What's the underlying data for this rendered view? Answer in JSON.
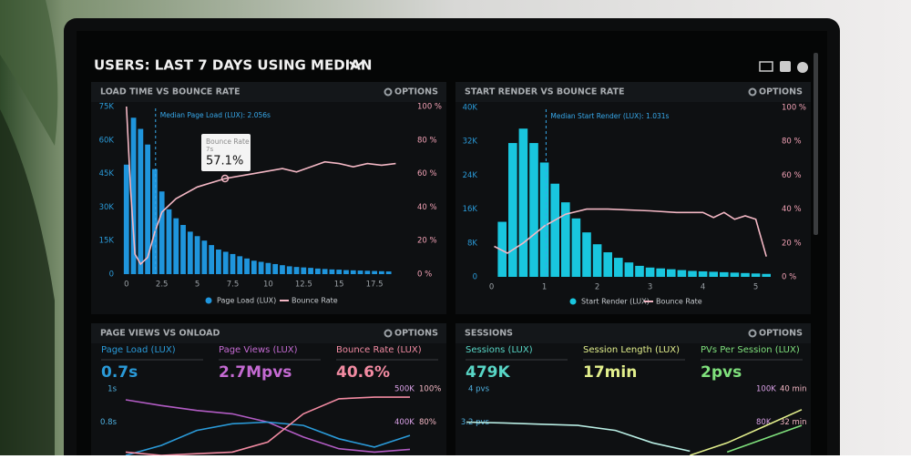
{
  "header": {
    "title": "USERS: LAST 7 DAYS USING MEDIAN"
  },
  "chart_data": [
    {
      "type": "histogram",
      "title": "LOAD TIME VS BOUNCE RATE",
      "options": "OPTIONS",
      "bins": [
        -0.25,
        0.25,
        0.75,
        1.25,
        1.75,
        2.25,
        2.75,
        3.25,
        3.75,
        4.25,
        4.75,
        5.25,
        5.75,
        6.25,
        6.75,
        7.25,
        7.75,
        8.25,
        8.75,
        9.25,
        9.75,
        10.25,
        10.75,
        11.25,
        11.75,
        12.25,
        12.75,
        13.25,
        13.75,
        14.25,
        14.75,
        15.25,
        15.75,
        16.25,
        16.75,
        17.25,
        17.75,
        18.25,
        18.75
      ],
      "series": [
        {
          "name": "Page Load (LUX)",
          "color": "#1f95dc",
          "values": [
            49000,
            70000,
            65000,
            58000,
            47000,
            37000,
            29000,
            25000,
            22000,
            19000,
            17000,
            15000,
            13000,
            11000,
            10000,
            9000,
            8000,
            7000,
            6000,
            5500,
            5000,
            4500,
            4000,
            3500,
            3200,
            3000,
            2800,
            2500,
            2300,
            2100,
            2000,
            1800,
            1700,
            1600,
            1500,
            1400,
            1300,
            1200
          ]
        },
        {
          "name": "Bounce Rate",
          "color": "#f3b7c4",
          "axis": "y2",
          "x": [
            0,
            0.3,
            0.6,
            1,
            1.5,
            2,
            2.5,
            3.5,
            5,
            7,
            9,
            11,
            12,
            13,
            14,
            15,
            16,
            17,
            18,
            19
          ],
          "values": [
            100,
            50,
            12,
            6,
            10,
            25,
            37,
            45,
            52,
            57.1,
            60,
            63,
            61,
            64,
            67,
            66,
            64,
            66,
            65,
            66
          ]
        }
      ],
      "xlim": [
        -0.5,
        20
      ],
      "xticks": [
        0,
        2.5,
        5,
        7.5,
        10,
        12.5,
        15,
        17.5
      ],
      "ylim": [
        0,
        75000
      ],
      "yticks": [
        {
          "value": 0,
          "label": "0"
        },
        {
          "value": 15000,
          "label": "15K"
        },
        {
          "value": 30000,
          "label": "30K"
        },
        {
          "value": 45000,
          "label": "45K"
        },
        {
          "value": 60000,
          "label": "60K"
        },
        {
          "value": 75000,
          "label": "75K"
        }
      ],
      "y2lim": [
        0,
        100
      ],
      "y2ticks": [
        {
          "value": 0,
          "label": "0 %"
        },
        {
          "value": 20,
          "label": "20 %"
        },
        {
          "value": 40,
          "label": "40 %"
        },
        {
          "value": 60,
          "label": "60 %"
        },
        {
          "value": 80,
          "label": "80 %"
        },
        {
          "value": 100,
          "label": "100 %"
        }
      ],
      "median": {
        "value": 2.056,
        "label": "Median Page Load (LUX): 2.056s"
      },
      "tooltip": {
        "title": "Bounce Rate",
        "subtitle": "7s",
        "label": "57.1%"
      }
    },
    {
      "type": "histogram",
      "title": "START RENDER VS BOUNCE RATE",
      "options": "OPTIONS",
      "bins": [
        0.1,
        0.3,
        0.5,
        0.7,
        0.9,
        1.1,
        1.3,
        1.5,
        1.7,
        1.9,
        2.1,
        2.3,
        2.5,
        2.7,
        2.9,
        3.1,
        3.3,
        3.5,
        3.7,
        3.9,
        4.1,
        4.3,
        4.5,
        4.7,
        4.9,
        5.1,
        5.3
      ],
      "series": [
        {
          "name": "Start Render (LUX)",
          "color": "#19c6de",
          "values": [
            13000,
            31600,
            35000,
            31600,
            27000,
            22000,
            17600,
            13800,
            10500,
            7700,
            5800,
            4500,
            3400,
            2600,
            2200,
            2000,
            1800,
            1600,
            1400,
            1300,
            1200,
            1100,
            1000,
            900,
            800,
            700
          ]
        },
        {
          "name": "Bounce Rate",
          "color": "#f3b7c4",
          "axis": "y2",
          "x": [
            0.05,
            0.3,
            0.6,
            1,
            1.4,
            1.8,
            2.2,
            3,
            3.5,
            4,
            4.2,
            4.4,
            4.6,
            4.8,
            5,
            5.2
          ],
          "values": [
            18,
            14,
            20,
            30,
            37,
            40,
            40,
            39,
            38,
            38,
            35,
            38,
            34,
            36,
            34,
            12
          ]
        }
      ],
      "xlim": [
        -0.2,
        5.3
      ],
      "xticks": [
        0,
        1,
        2,
        3,
        4,
        5
      ],
      "ylim": [
        0,
        40000
      ],
      "yticks": [
        {
          "value": 0,
          "label": "0"
        },
        {
          "value": 8000,
          "label": "8K"
        },
        {
          "value": 16000,
          "label": "16K"
        },
        {
          "value": 24000,
          "label": "24K"
        },
        {
          "value": 32000,
          "label": "32K"
        },
        {
          "value": 40000,
          "label": "40K"
        }
      ],
      "y2lim": [
        0,
        100
      ],
      "y2ticks": [
        {
          "value": 0,
          "label": "0 %"
        },
        {
          "value": 20,
          "label": "20 %"
        },
        {
          "value": 40,
          "label": "40 %"
        },
        {
          "value": 60,
          "label": "60 %"
        },
        {
          "value": 80,
          "label": "80 %"
        },
        {
          "value": 100,
          "label": "100 %"
        }
      ],
      "median": {
        "value": 1.031,
        "label": "Median Start Render (LUX): 1.031s"
      }
    },
    {
      "type": "line",
      "title": "PAGE VIEWS VS ONLOAD",
      "options": "OPTIONS",
      "kpis": [
        {
          "label": "Page Load (LUX)",
          "value": "0.7s",
          "color": "#2a9ad8"
        },
        {
          "label": "Page Views (LUX)",
          "value": "2.7Mpvs",
          "color": "#c46ad2"
        },
        {
          "label": "Bounce Rate (LUX)",
          "value": "40.6%",
          "color": "#f28ba2"
        }
      ],
      "x": [
        0,
        1,
        2,
        3,
        4,
        5,
        6,
        7,
        8
      ],
      "xlim": [
        0,
        8
      ],
      "ylim": [
        0.6,
        1
      ],
      "yticks": [
        {
          "value": 1,
          "label": "1s"
        },
        {
          "value": 0.8,
          "label": "0.8s"
        }
      ],
      "y2lim": [
        300000,
        500000
      ],
      "y2ticks": [
        {
          "value": 500000,
          "label": "500K"
        },
        {
          "value": 400000,
          "label": "400K"
        }
      ],
      "y3lim": [
        60,
        100
      ],
      "y3ticks": [
        {
          "value": 100,
          "label": "100%"
        },
        {
          "value": 80,
          "label": "80%"
        }
      ],
      "series": [
        {
          "color": "#b25cc4",
          "axis": "y2",
          "values": [
            467000,
            450000,
            435000,
            425000,
            400000,
            355000,
            320000,
            310000,
            318000
          ]
        },
        {
          "color": "#2a9ad8",
          "values": [
            0.6,
            0.66,
            0.75,
            0.79,
            0.8,
            0.78,
            0.7,
            0.65,
            0.72
          ]
        },
        {
          "color": "#f28ba2",
          "axis": "y3",
          "values": [
            62,
            60,
            61,
            62,
            68,
            85,
            94,
            95,
            95
          ]
        }
      ]
    },
    {
      "type": "line",
      "title": "SESSIONS",
      "options": "OPTIONS",
      "kpis": [
        {
          "label": "Sessions (LUX)",
          "value": "479K",
          "color": "#58d6c6"
        },
        {
          "label": "Session Length (LUX)",
          "value": "17min",
          "color": "#e2ef8c"
        },
        {
          "label": "PVs Per Session (LUX)",
          "value": "2pvs",
          "color": "#7fe07c"
        }
      ],
      "x": [
        0,
        1,
        2,
        3,
        4,
        5,
        6,
        7,
        8,
        9
      ],
      "xlim": [
        0,
        9
      ],
      "ylim": [
        2.4,
        4
      ],
      "yticks": [
        {
          "value": 4,
          "label": "4 pvs"
        },
        {
          "value": 3.2,
          "label": "3.2 pvs"
        }
      ],
      "y2lim": [
        60000,
        100000
      ],
      "y2ticks": [
        {
          "value": 100000,
          "label": "100K"
        },
        {
          "value": 80000,
          "label": "80K"
        }
      ],
      "y3lim": [
        24,
        40
      ],
      "y3ticks": [
        {
          "value": 40,
          "label": "40 min"
        },
        {
          "value": 32,
          "label": "32 min"
        }
      ],
      "series": [
        {
          "color": "#b9eee4",
          "values": [
            3.2,
            3.18,
            3.15,
            3.12,
            3.0,
            2.7,
            2.5,
            null,
            null,
            null
          ]
        },
        {
          "color": "#e2ef8c",
          "axis": "y3",
          "values": [
            null,
            null,
            null,
            null,
            null,
            null,
            24,
            27,
            31,
            35
          ]
        },
        {
          "color": "#7fe07c",
          "axis": "y2",
          "values": [
            null,
            null,
            null,
            null,
            null,
            null,
            null,
            62000,
            70000,
            78000
          ]
        }
      ]
    }
  ]
}
